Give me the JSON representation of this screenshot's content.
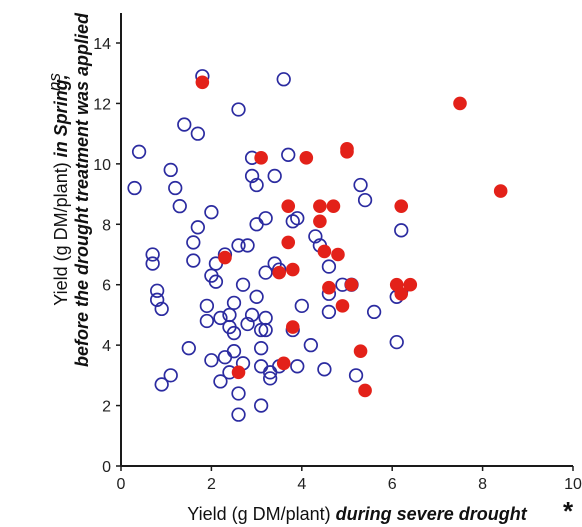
{
  "chart_data": {
    "type": "scatter",
    "title": "",
    "xlabel_parts": [
      "Yield (g DM/plant) ",
      "during severe drought"
    ],
    "ylabel_lines": [
      [
        "Yield (g DM/plant) ",
        "in Spring,"
      ],
      [
        "",
        "before the drought treatment was applied"
      ]
    ],
    "x_significance": "*",
    "y_significance": "ns",
    "xlim": [
      0,
      10
    ],
    "ylim": [
      0,
      14
    ],
    "x_ticks": [
      "0",
      "2",
      "4",
      "6",
      "8",
      "10"
    ],
    "y_ticks": [
      "0",
      "2",
      "4",
      "6",
      "8",
      "10",
      "12",
      "14"
    ],
    "grid": false,
    "legend": null,
    "colors": {
      "open_points": "#2b2ba0",
      "filled_points": "#e32119",
      "axis": "#1a1a1a"
    },
    "series": [
      {
        "marker": "open-circle",
        "points": [
          [
            0.4,
            10.4
          ],
          [
            0.3,
            9.2
          ],
          [
            0.7,
            7.0
          ],
          [
            0.7,
            6.7
          ],
          [
            0.8,
            5.8
          ],
          [
            0.8,
            5.5
          ],
          [
            0.9,
            5.2
          ],
          [
            0.9,
            2.7
          ],
          [
            1.1,
            3.0
          ],
          [
            1.1,
            9.8
          ],
          [
            1.2,
            9.2
          ],
          [
            1.3,
            8.6
          ],
          [
            1.4,
            11.3
          ],
          [
            1.5,
            3.9
          ],
          [
            1.6,
            6.8
          ],
          [
            1.6,
            7.4
          ],
          [
            1.7,
            7.9
          ],
          [
            1.7,
            11.0
          ],
          [
            1.8,
            12.9
          ],
          [
            1.9,
            5.3
          ],
          [
            1.9,
            4.8
          ],
          [
            2.0,
            8.4
          ],
          [
            2.0,
            6.3
          ],
          [
            2.0,
            3.5
          ],
          [
            2.1,
            6.7
          ],
          [
            2.1,
            6.1
          ],
          [
            2.2,
            4.9
          ],
          [
            2.2,
            2.8
          ],
          [
            2.3,
            7.0
          ],
          [
            2.3,
            3.6
          ],
          [
            2.4,
            3.1
          ],
          [
            2.4,
            5.0
          ],
          [
            2.4,
            4.6
          ],
          [
            2.5,
            5.4
          ],
          [
            2.5,
            4.4
          ],
          [
            2.5,
            3.8
          ],
          [
            2.6,
            2.4
          ],
          [
            2.6,
            1.7
          ],
          [
            2.6,
            11.8
          ],
          [
            2.6,
            7.3
          ],
          [
            2.7,
            3.4
          ],
          [
            2.7,
            6.0
          ],
          [
            2.8,
            7.3
          ],
          [
            2.8,
            4.7
          ],
          [
            2.9,
            10.2
          ],
          [
            2.9,
            9.6
          ],
          [
            2.9,
            5.0
          ],
          [
            3.0,
            9.3
          ],
          [
            3.0,
            8.0
          ],
          [
            3.0,
            5.6
          ],
          [
            3.1,
            4.5
          ],
          [
            3.1,
            3.9
          ],
          [
            3.1,
            2.0
          ],
          [
            3.1,
            3.3
          ],
          [
            3.2,
            6.4
          ],
          [
            3.2,
            8.2
          ],
          [
            3.2,
            4.9
          ],
          [
            3.2,
            4.5
          ],
          [
            3.3,
            3.1
          ],
          [
            3.3,
            2.9
          ],
          [
            3.4,
            6.7
          ],
          [
            3.4,
            9.6
          ],
          [
            3.5,
            3.3
          ],
          [
            3.5,
            6.5
          ],
          [
            3.6,
            12.8
          ],
          [
            3.7,
            10.3
          ],
          [
            3.8,
            8.1
          ],
          [
            3.8,
            4.5
          ],
          [
            3.9,
            8.2
          ],
          [
            3.9,
            3.3
          ],
          [
            4.0,
            5.3
          ],
          [
            4.2,
            4.0
          ],
          [
            4.3,
            7.6
          ],
          [
            4.4,
            7.3
          ],
          [
            4.5,
            3.2
          ],
          [
            4.6,
            6.6
          ],
          [
            4.6,
            5.7
          ],
          [
            4.6,
            5.1
          ],
          [
            4.9,
            6.0
          ],
          [
            5.1,
            6.0
          ],
          [
            5.2,
            3.0
          ],
          [
            5.3,
            9.3
          ],
          [
            5.4,
            8.8
          ],
          [
            5.6,
            5.1
          ],
          [
            6.1,
            4.1
          ],
          [
            6.1,
            5.6
          ],
          [
            6.2,
            5.8
          ],
          [
            6.2,
            7.8
          ]
        ]
      },
      {
        "marker": "filled-circle",
        "points": [
          [
            1.8,
            12.7
          ],
          [
            2.3,
            6.9
          ],
          [
            2.6,
            3.1
          ],
          [
            3.1,
            10.2
          ],
          [
            3.5,
            6.4
          ],
          [
            3.6,
            3.4
          ],
          [
            3.7,
            8.6
          ],
          [
            3.7,
            7.4
          ],
          [
            3.8,
            6.5
          ],
          [
            3.8,
            4.6
          ],
          [
            4.1,
            10.2
          ],
          [
            4.4,
            8.6
          ],
          [
            4.4,
            8.1
          ],
          [
            4.5,
            7.1
          ],
          [
            4.6,
            5.9
          ],
          [
            4.7,
            8.6
          ],
          [
            4.8,
            7.0
          ],
          [
            4.9,
            5.3
          ],
          [
            5.0,
            10.5
          ],
          [
            5.0,
            10.4
          ],
          [
            5.1,
            6.0
          ],
          [
            5.3,
            3.8
          ],
          [
            5.4,
            2.5
          ],
          [
            6.1,
            6.0
          ],
          [
            6.2,
            8.6
          ],
          [
            6.2,
            5.7
          ],
          [
            6.4,
            6.0
          ],
          [
            7.5,
            12.0
          ],
          [
            8.4,
            9.1
          ]
        ]
      }
    ]
  }
}
